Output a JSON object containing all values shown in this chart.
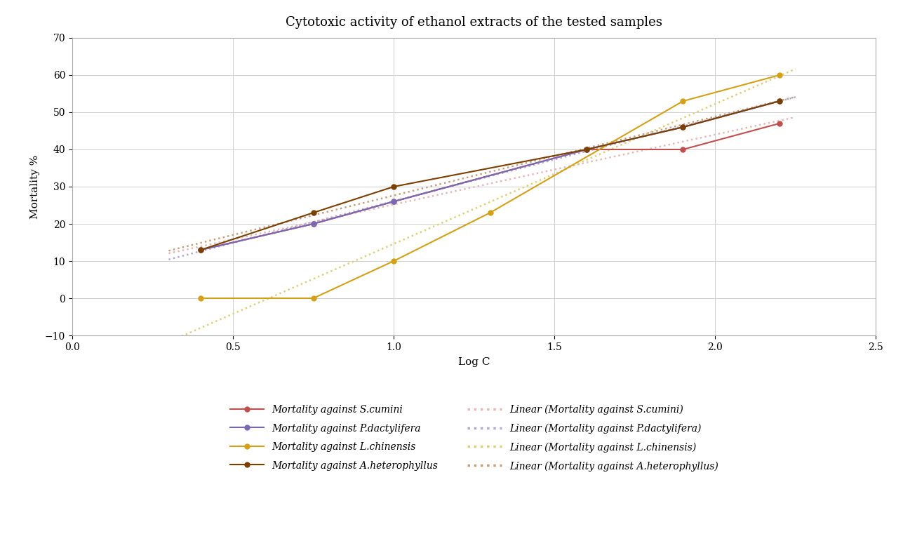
{
  "title": "Cytotoxic activity of ethanol extracts of the tested samples",
  "xlabel": "Log C",
  "ylabel": "Mortality %",
  "xlim": [
    0,
    2.5
  ],
  "ylim": [
    -10,
    70
  ],
  "yticks": [
    -10,
    0,
    10,
    20,
    30,
    40,
    50,
    60,
    70
  ],
  "xticks": [
    0,
    0.5,
    1.0,
    1.5,
    2.0,
    2.5
  ],
  "series": {
    "S.cumini": {
      "x": [
        0.4,
        0.75,
        1.0,
        1.6,
        1.9,
        2.2
      ],
      "y": [
        13,
        20,
        26,
        40,
        40,
        47
      ],
      "color": "#c0504d",
      "linear_color": "#e6b8b7"
    },
    "P.dactylifera": {
      "x": [
        0.4,
        0.75,
        1.0,
        1.6,
        1.9,
        2.2
      ],
      "y": [
        13,
        20,
        26,
        40,
        46,
        53
      ],
      "color": "#7b68b5",
      "linear_color": "#b3a9d3"
    },
    "L.chinensis": {
      "x": [
        0.4,
        0.75,
        1.0,
        1.3,
        1.9,
        2.2
      ],
      "y": [
        0,
        0,
        10,
        23,
        53,
        60
      ],
      "color": "#d4a017",
      "linear_color": "#ddd07a"
    },
    "A.heterophyllus": {
      "x": [
        0.4,
        0.75,
        1.0,
        1.6,
        1.9,
        2.2
      ],
      "y": [
        13,
        23,
        30,
        40,
        46,
        53
      ],
      "color": "#7b3f00",
      "linear_color": "#c4a080"
    }
  },
  "series_order": [
    "S.cumini",
    "P.dactylifera",
    "L.chinensis",
    "A.heterophyllus"
  ],
  "legend_line_labels": [
    "Mortality against S.cumini",
    "Mortality against P.dactylifera",
    "Mortality against L.chinensis",
    "Mortality against A.heterophyllus"
  ],
  "legend_linear_labels": [
    "Linear (Mortality against S.cumini)",
    "Linear (Mortality against P.dactylifera)",
    "Linear (Mortality against L.chinensis)",
    "Linear (Mortality against A.heterophyllus)"
  ]
}
